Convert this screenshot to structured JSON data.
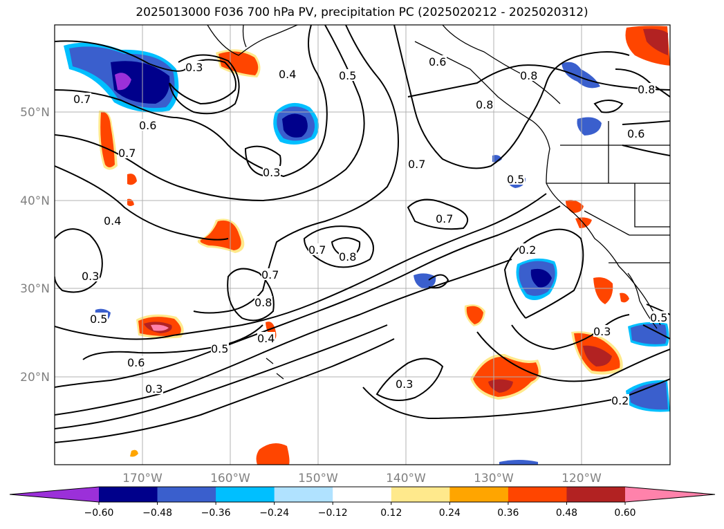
{
  "title": "2025013000 F036 700 hPa PV, precipitation PC (2025020212 - 2025020312)",
  "lat_labels": [
    "50°N",
    "40°N",
    "30°N",
    "20°N"
  ],
  "lon_labels": [
    "170°W",
    "160°W",
    "150°W",
    "140°W",
    "130°W",
    "120°W"
  ],
  "contour_labels": [
    "0.2",
    "0.3",
    "0.4",
    "0.5",
    "0.6",
    "0.7",
    "0.8"
  ],
  "colorbar": {
    "ticks": [
      "−0.60",
      "−0.48",
      "−0.36",
      "−0.24",
      "−0.12",
      "0.12",
      "0.24",
      "0.36",
      "0.48",
      "0.60"
    ],
    "colors": [
      "#9b30d9",
      "#00008b",
      "#3a5fcd",
      "#00bfff",
      "#b0e2ff",
      "#ffffff",
      "#ffe98c",
      "#ffa500",
      "#ff4500",
      "#b22222",
      "#ff82ab"
    ]
  },
  "colors": {
    "contour": "#000000",
    "grid": "#b0b0b0",
    "coast": "#000000",
    "axis_label": "#808080"
  }
}
